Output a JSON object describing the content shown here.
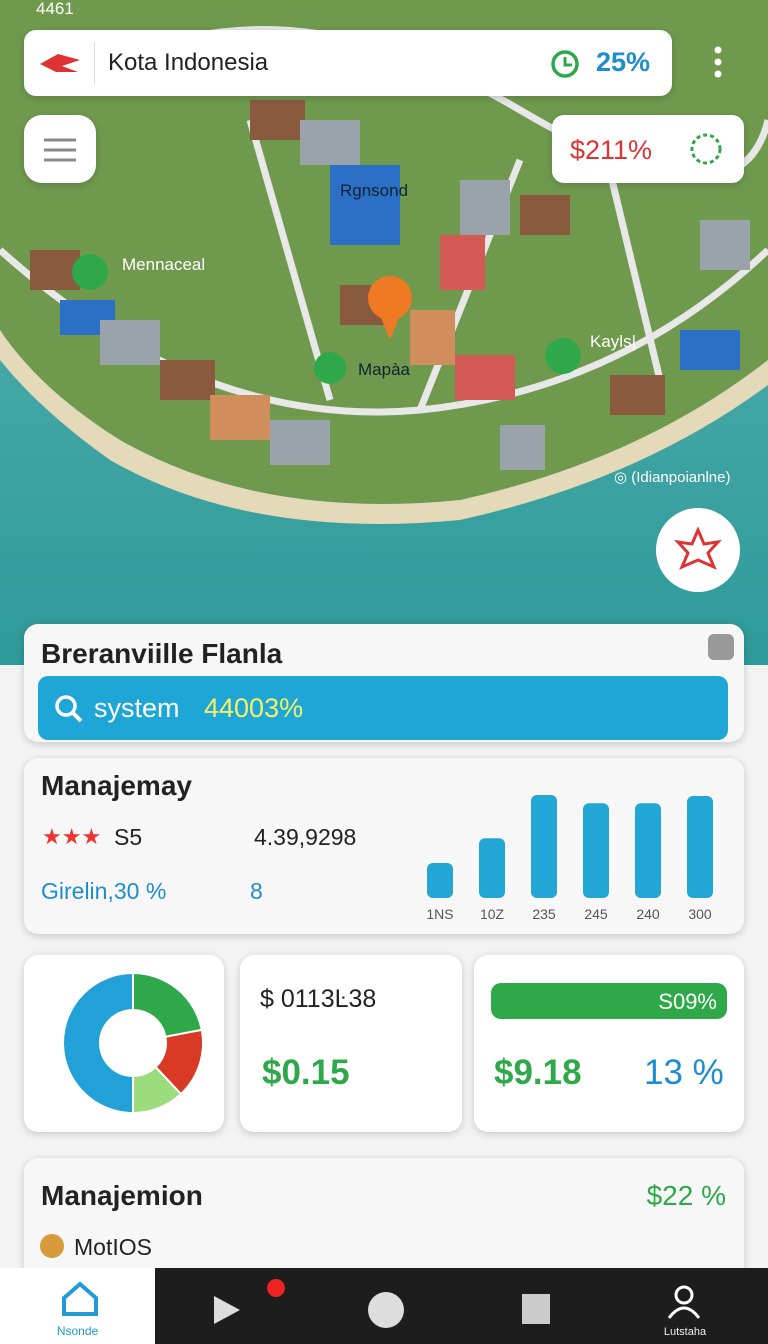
{
  "status": {
    "time": "4461"
  },
  "search": {
    "title": "Kota Indonesia",
    "percent": "25%"
  },
  "badge": {
    "value": "$211%"
  },
  "map": {
    "labels": [
      "Rgnsond",
      "Mennaceal",
      "Mapàa",
      "Kayls|",
      "◎ (Idianрoianlne)"
    ]
  },
  "card1": {
    "title": "Breranviille Flanla",
    "search_label": "system",
    "search_value": "44003%"
  },
  "card2": {
    "title": "Manajemay",
    "rating": "S5",
    "amount": "4.39,9298",
    "growth": "Girelin,30 %",
    "count": "8",
    "chart_data": {
      "type": "bar",
      "categories": [
        "1NS",
        "10Z",
        "235",
        "245",
        "240",
        "300"
      ],
      "values": [
        34,
        58,
        100,
        92,
        92,
        99
      ],
      "color": "#22a6d6",
      "ylim": [
        0,
        100
      ]
    }
  },
  "card3": {
    "donut": {
      "chart_data": {
        "type": "pie",
        "values": [
          22,
          16,
          12,
          50
        ],
        "colors": [
          "#2fa84a",
          "#d93a26",
          "#9bdc7c",
          "#22a0d8"
        ]
      }
    },
    "amount_label": "$ 0113Ŀ38",
    "amount": "$0.15",
    "progress": "S09%",
    "value": "$9.18",
    "percent": "13 %"
  },
  "card4": {
    "title": "Manajemion",
    "percent": "$22 %",
    "item": "MotIOS"
  },
  "nav": {
    "home": "Nsonde",
    "profile": "Lutstaha"
  }
}
